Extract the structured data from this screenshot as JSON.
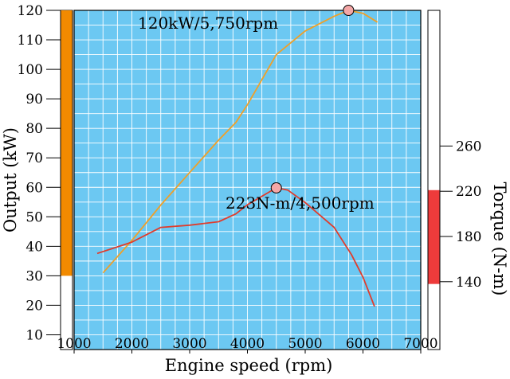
{
  "chart_data": {
    "type": "line",
    "xlabel": "Engine speed (rpm)",
    "ylabel": "Output (kW)",
    "y2label": "Torque (N-m)",
    "xlim": [
      1000,
      7000
    ],
    "ylim": [
      5,
      120
    ],
    "y2lim": [
      80,
      380
    ],
    "grid": true,
    "x_ticks": [
      "1000",
      "2000",
      "3000",
      "4000",
      "5000",
      "6000",
      "7000"
    ],
    "y_ticks": [
      "10",
      "20",
      "30",
      "40",
      "50",
      "60",
      "70",
      "80",
      "90",
      "100",
      "110",
      "120"
    ],
    "y2_ticks": [
      "140",
      "180",
      "220",
      "260"
    ],
    "colors": {
      "plot_background": "#6cc8f2",
      "grid": "#ffffff",
      "output": "#f0a028",
      "torque": "#e03c2c",
      "output_band": "#f28a00",
      "torque_band": "#ee3b3b",
      "marker_fill": "#f4a7a7"
    },
    "left_band_range": [
      30,
      120
    ],
    "right_band_range": [
      138,
      221
    ],
    "series": [
      {
        "key": "output",
        "axis": "left",
        "x": [
          1500,
          2000,
          2500,
          3000,
          3500,
          3800,
          4000,
          4500,
          5000,
          5500,
          5750,
          6000,
          6250
        ],
        "values": [
          31,
          42,
          54,
          65,
          76,
          82,
          88,
          105,
          113,
          118,
          120,
          119,
          116
        ]
      },
      {
        "key": "torque",
        "axis": "right",
        "x": [
          1400,
          2000,
          2500,
          3000,
          3500,
          3800,
          4000,
          4500,
          4700,
          5000,
          5500,
          5800,
          6000,
          6200
        ],
        "values": [
          165,
          175,
          188,
          190,
          193,
          200,
          208,
          223,
          221,
          210,
          188,
          164,
          144,
          118
        ]
      }
    ],
    "annotations": [
      {
        "key": "output_peak",
        "text": "120kW/5,750rpm",
        "x": 5750,
        "y": 120,
        "axis": "left"
      },
      {
        "key": "torque_peak",
        "text": "223N-m/4,500rpm",
        "x": 4500,
        "y": 223,
        "axis": "right"
      }
    ]
  }
}
